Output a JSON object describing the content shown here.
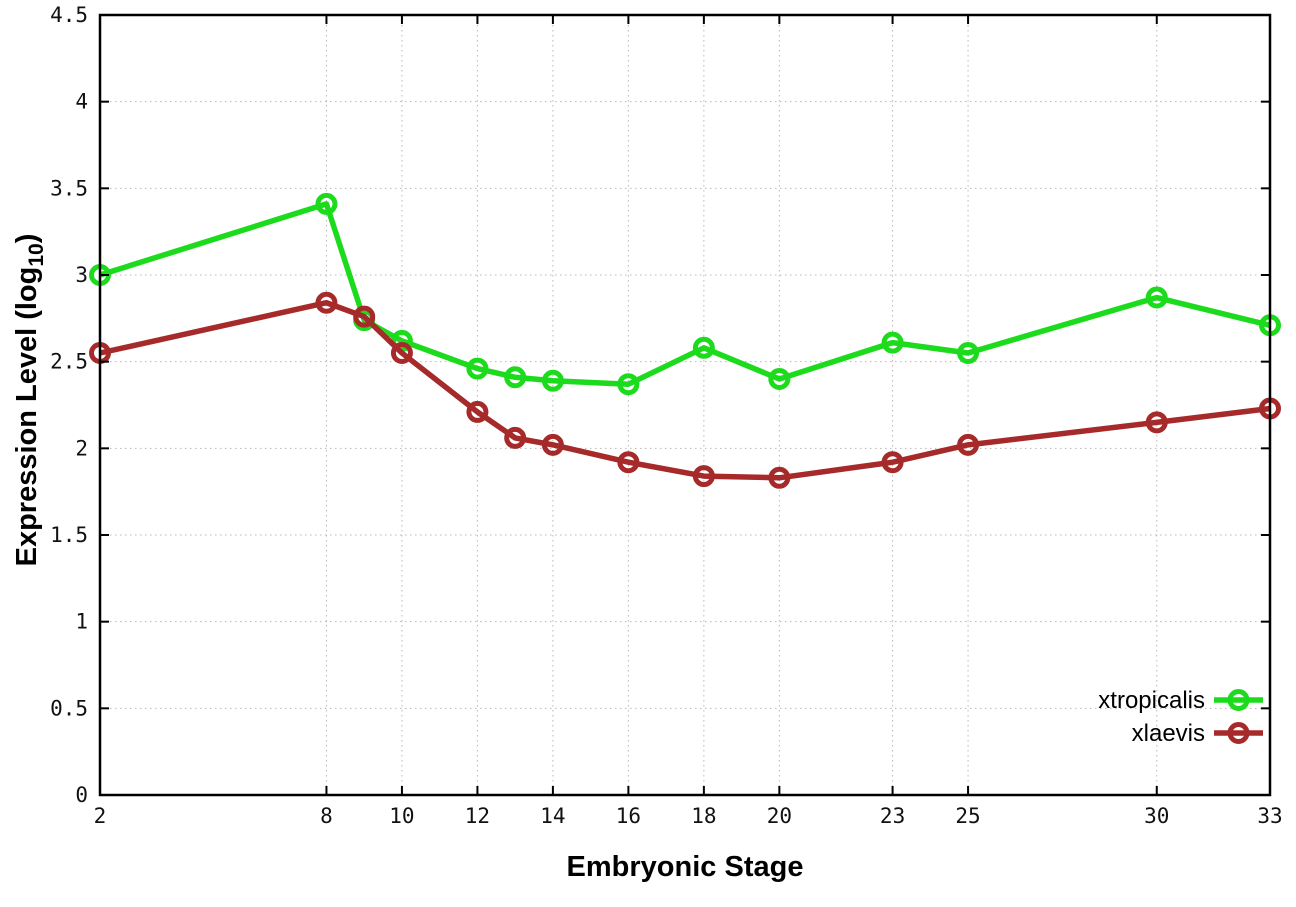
{
  "figure": {
    "background": "#ffffff",
    "border_color": "#000000",
    "grid_color": "#b8b8b8",
    "tick_color": "#000000"
  },
  "chart_data": {
    "type": "line",
    "title": "",
    "xlabel": "Embryonic Stage",
    "ylabel_parts": {
      "pre": "Expression Level (log",
      "sub": "10",
      "post": ")"
    },
    "x": [
      2,
      8,
      9,
      10,
      12,
      13,
      14,
      16,
      18,
      20,
      23,
      25,
      30,
      33
    ],
    "series": [
      {
        "name": "xtropicalis",
        "color": "#1cdb1c",
        "values": [
          3.0,
          3.41,
          2.74,
          2.62,
          2.46,
          2.41,
          2.39,
          2.37,
          2.58,
          2.4,
          2.61,
          2.55,
          2.87,
          2.71
        ]
      },
      {
        "name": "xlaevis",
        "color": "#a62a2a",
        "values": [
          2.55,
          2.84,
          2.76,
          2.55,
          2.21,
          2.06,
          2.02,
          1.92,
          1.84,
          1.83,
          1.92,
          2.02,
          2.15,
          2.23
        ]
      }
    ],
    "xticks": [
      2,
      8,
      10,
      12,
      14,
      16,
      18,
      20,
      23,
      25,
      30,
      33
    ],
    "yticks": [
      0,
      0.5,
      1,
      1.5,
      2,
      2.5,
      3,
      3.5,
      4,
      4.5
    ],
    "xlim": [
      2,
      33
    ],
    "ylim": [
      0,
      4.5
    ],
    "grid": true,
    "marker": "open-circle",
    "legend_position": "bottom-right"
  }
}
